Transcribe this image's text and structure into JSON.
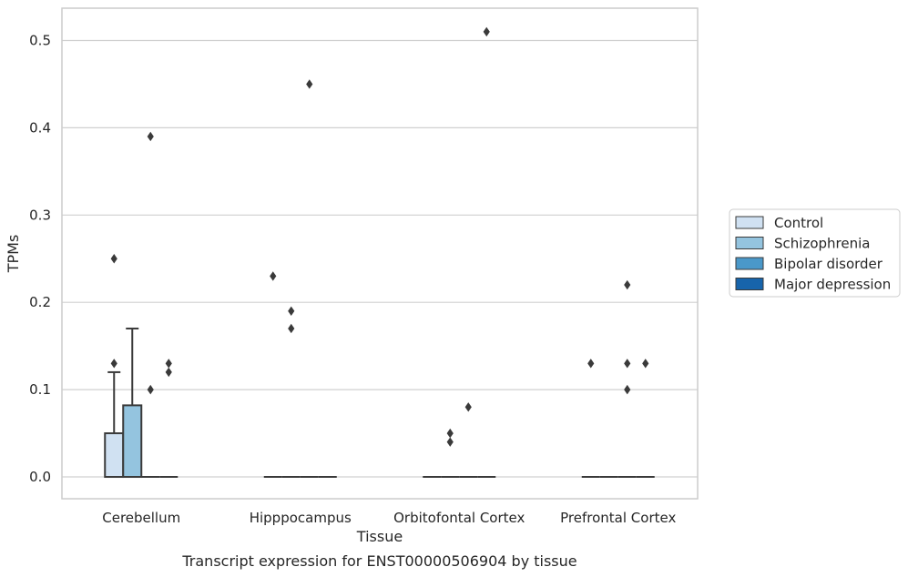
{
  "chart_data": {
    "type": "box",
    "xlabel": "Tissue",
    "ylabel": "TPMs",
    "caption": "Transcript expression for ENST00000506904 by tissue",
    "categories": [
      "Cerebellum",
      "Hipppocampus",
      "Orbitofontal Cortex",
      "Prefrontal Cortex"
    ],
    "ylim": [
      -0.025,
      0.537
    ],
    "yticks": [
      0.0,
      0.1,
      0.2,
      0.3,
      0.4,
      0.5
    ],
    "ytick_labels": [
      "0.0",
      "0.1",
      "0.2",
      "0.3",
      "0.4",
      "0.5"
    ],
    "grid": "horizontal",
    "legend_placement": "right",
    "series": [
      {
        "name": "Control",
        "color": "#d0e1f2",
        "boxes": [
          {
            "q1": 0.0,
            "median": 0.0,
            "q3": 0.05,
            "whislo": 0.0,
            "whishi": 0.12,
            "fliers": [
              0.13,
              0.25
            ]
          },
          {
            "q1": 0.0,
            "median": 0.0,
            "q3": 0.0,
            "whislo": 0.0,
            "whishi": 0.0,
            "fliers": [
              0.23
            ]
          },
          {
            "q1": 0.0,
            "median": 0.0,
            "q3": 0.0,
            "whislo": 0.0,
            "whishi": 0.0,
            "fliers": []
          },
          {
            "q1": 0.0,
            "median": 0.0,
            "q3": 0.0,
            "whislo": 0.0,
            "whishi": 0.0,
            "fliers": [
              0.13
            ]
          }
        ]
      },
      {
        "name": "Schizophrenia",
        "color": "#94c4df",
        "boxes": [
          {
            "q1": 0.0,
            "median": 0.0,
            "q3": 0.082,
            "whislo": 0.0,
            "whishi": 0.17,
            "fliers": []
          },
          {
            "q1": 0.0,
            "median": 0.0,
            "q3": 0.0,
            "whislo": 0.0,
            "whishi": 0.0,
            "fliers": [
              0.17,
              0.19
            ]
          },
          {
            "q1": 0.0,
            "median": 0.0,
            "q3": 0.0,
            "whislo": 0.0,
            "whishi": 0.0,
            "fliers": [
              0.04,
              0.05
            ]
          },
          {
            "q1": 0.0,
            "median": 0.0,
            "q3": 0.0,
            "whislo": 0.0,
            "whishi": 0.0,
            "fliers": []
          }
        ]
      },
      {
        "name": "Bipolar disorder",
        "color": "#4a98c9",
        "boxes": [
          {
            "q1": 0.0,
            "median": 0.0,
            "q3": 0.0,
            "whislo": 0.0,
            "whishi": 0.0,
            "fliers": [
              0.1,
              0.39
            ]
          },
          {
            "q1": 0.0,
            "median": 0.0,
            "q3": 0.0,
            "whislo": 0.0,
            "whishi": 0.0,
            "fliers": [
              0.45
            ]
          },
          {
            "q1": 0.0,
            "median": 0.0,
            "q3": 0.0,
            "whislo": 0.0,
            "whishi": 0.0,
            "fliers": [
              0.08
            ]
          },
          {
            "q1": 0.0,
            "median": 0.0,
            "q3": 0.0,
            "whislo": 0.0,
            "whishi": 0.0,
            "fliers": [
              0.1,
              0.13,
              0.22
            ]
          }
        ]
      },
      {
        "name": "Major depression",
        "color": "#1764ab",
        "boxes": [
          {
            "q1": 0.0,
            "median": 0.0,
            "q3": 0.0,
            "whislo": 0.0,
            "whishi": 0.0,
            "fliers": [
              0.12,
              0.13
            ]
          },
          {
            "q1": 0.0,
            "median": 0.0,
            "q3": 0.0,
            "whislo": 0.0,
            "whishi": 0.0,
            "fliers": []
          },
          {
            "q1": 0.0,
            "median": 0.0,
            "q3": 0.0,
            "whislo": 0.0,
            "whishi": 0.0,
            "fliers": [
              0.51
            ]
          },
          {
            "q1": 0.0,
            "median": 0.0,
            "q3": 0.0,
            "whislo": 0.0,
            "whishi": 0.0,
            "fliers": [
              0.13
            ]
          }
        ]
      }
    ]
  }
}
